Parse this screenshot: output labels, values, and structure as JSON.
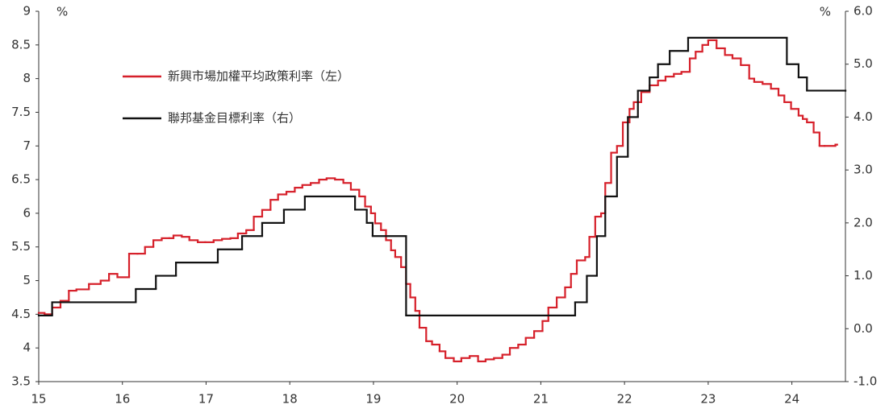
{
  "chart_data": {
    "type": "step-line",
    "ylabel": "%",
    "y2label": "%",
    "xlim": [
      15,
      24.64
    ],
    "xticks": [
      15,
      16,
      17,
      18,
      19,
      20,
      21,
      22,
      23,
      24
    ],
    "ylim": [
      3.5,
      9.0
    ],
    "yticks": [
      3.5,
      4.0,
      4.5,
      5.0,
      5.5,
      6.0,
      6.5,
      7.0,
      7.5,
      8.0,
      8.5,
      9.0
    ],
    "y2lim": [
      -1.0,
      6.0
    ],
    "y2ticks": [
      {
        "value": -1,
        "label": "-1.0"
      },
      {
        "value": 0,
        "label": "0.0"
      },
      {
        "value": 1,
        "label": "1.0"
      },
      {
        "value": 2,
        "label": "2.0"
      },
      {
        "value": 3,
        "label": "3.0"
      },
      {
        "value": 4,
        "label": "4.0"
      },
      {
        "value": 5,
        "label": "5.0"
      },
      {
        "value": 6,
        "label": "6.0"
      }
    ],
    "grid": false,
    "series": [
      {
        "name": "新興市場加權平均政策利率（左）",
        "color": "#d6202a",
        "axis": "y",
        "x": [
          15.0,
          15.07,
          15.16,
          15.26,
          15.36,
          15.45,
          15.6,
          15.74,
          15.84,
          15.94,
          16.08,
          16.18,
          16.27,
          16.37,
          16.47,
          16.56,
          16.61,
          16.71,
          16.8,
          16.9,
          16.99,
          17.09,
          17.19,
          17.29,
          17.38,
          17.48,
          17.57,
          17.67,
          17.77,
          17.86,
          17.96,
          18.06,
          18.15,
          18.25,
          18.35,
          18.44,
          18.54,
          18.64,
          18.73,
          18.83,
          18.9,
          18.97,
          19.02,
          19.09,
          19.15,
          19.21,
          19.26,
          19.33,
          19.39,
          19.44,
          19.5,
          19.55,
          19.63,
          19.7,
          19.79,
          19.86,
          19.96,
          20.05,
          20.15,
          20.25,
          20.34,
          20.44,
          20.54,
          20.63,
          20.73,
          20.82,
          20.92,
          21.02,
          21.09,
          21.19,
          21.29,
          21.36,
          21.43,
          21.53,
          21.58,
          21.65,
          21.72,
          21.77,
          21.84,
          21.91,
          21.98,
          22.06,
          22.11,
          22.2,
          22.3,
          22.4,
          22.49,
          22.59,
          22.68,
          22.78,
          22.85,
          22.93,
          23.0,
          23.1,
          23.2,
          23.29,
          23.39,
          23.49,
          23.55,
          23.65,
          23.75,
          23.84,
          23.91,
          23.99,
          24.08,
          24.13,
          24.18,
          24.26,
          24.33,
          24.39,
          24.52,
          24.54
        ],
        "values": [
          4.52,
          4.5,
          4.6,
          4.7,
          4.85,
          4.87,
          4.95,
          5.0,
          5.1,
          5.05,
          5.4,
          5.4,
          5.5,
          5.6,
          5.63,
          5.63,
          5.67,
          5.65,
          5.6,
          5.57,
          5.57,
          5.6,
          5.62,
          5.63,
          5.7,
          5.75,
          5.95,
          6.05,
          6.2,
          6.28,
          6.32,
          6.38,
          6.42,
          6.45,
          6.5,
          6.52,
          6.5,
          6.45,
          6.35,
          6.25,
          6.1,
          6.0,
          5.85,
          5.75,
          5.6,
          5.45,
          5.35,
          5.2,
          4.95,
          4.75,
          4.55,
          4.3,
          4.1,
          4.05,
          3.95,
          3.85,
          3.8,
          3.85,
          3.88,
          3.8,
          3.83,
          3.85,
          3.9,
          4.0,
          4.05,
          4.15,
          4.25,
          4.4,
          4.6,
          4.75,
          4.9,
          5.1,
          5.3,
          5.35,
          5.65,
          5.95,
          6.0,
          6.45,
          6.9,
          7.0,
          7.35,
          7.55,
          7.65,
          7.8,
          7.9,
          7.97,
          8.03,
          8.07,
          8.1,
          8.3,
          8.4,
          8.5,
          8.57,
          8.45,
          8.35,
          8.3,
          8.2,
          8.0,
          7.95,
          7.92,
          7.85,
          7.75,
          7.65,
          7.55,
          7.45,
          7.4,
          7.35,
          7.2,
          7.0,
          7.0,
          7.02,
          7.02
        ]
      },
      {
        "name": "聯邦基金目標利率（右）",
        "color": "#111111",
        "axis": "y2",
        "x": [
          15.0,
          15.16,
          16.16,
          16.4,
          16.64,
          17.14,
          17.43,
          17.67,
          17.93,
          18.18,
          18.78,
          18.92,
          18.99,
          19.39,
          21.41,
          21.55,
          21.67,
          21.77,
          21.91,
          22.04,
          22.16,
          22.3,
          22.4,
          22.54,
          22.76,
          23.94,
          24.08,
          24.18,
          24.64
        ],
        "values": [
          0.25,
          0.5,
          0.75,
          1.0,
          1.25,
          1.5,
          1.75,
          2.0,
          2.25,
          2.5,
          2.25,
          2.0,
          1.75,
          0.25,
          0.5,
          1.0,
          1.75,
          2.5,
          3.25,
          4.0,
          4.5,
          4.75,
          5.0,
          5.25,
          5.5,
          5.0,
          4.75,
          4.5,
          4.5
        ]
      }
    ]
  }
}
